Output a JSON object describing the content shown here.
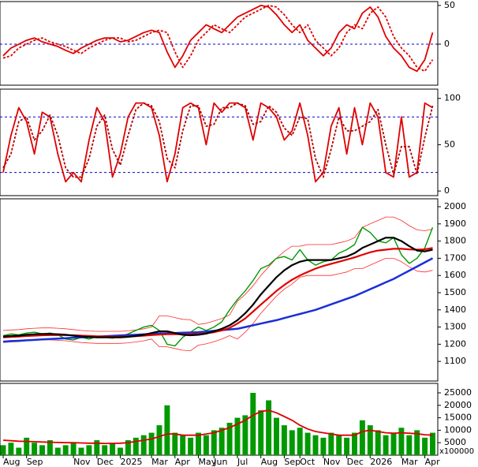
{
  "chart_data": [
    {
      "type": "line",
      "ylim": [
        -53,
        55
      ],
      "yticks": [
        0,
        50
      ],
      "ref_lines": [
        0
      ],
      "series": [
        {
          "color": "#e00000",
          "dash": false,
          "values": [
            -15,
            -5,
            0,
            5,
            8,
            3,
            0,
            -3,
            -8,
            -12,
            -5,
            0,
            5,
            8,
            8,
            3,
            5,
            10,
            15,
            18,
            15,
            -10,
            -30,
            -15,
            5,
            15,
            25,
            20,
            15,
            25,
            35,
            40,
            45,
            50,
            48,
            38,
            25,
            15,
            25,
            5,
            -5,
            -15,
            -5,
            15,
            25,
            20,
            40,
            48,
            35,
            10,
            -5,
            -15,
            -30,
            -35,
            -20,
            15
          ]
        },
        {
          "color": "#e00000",
          "dash": true,
          "values": [
            -18,
            -15,
            -5,
            0,
            5,
            8,
            3,
            0,
            -3,
            -8,
            -12,
            -5,
            0,
            5,
            8,
            8,
            3,
            5,
            10,
            15,
            18,
            15,
            -10,
            -30,
            -15,
            5,
            15,
            25,
            20,
            15,
            25,
            35,
            40,
            45,
            50,
            48,
            38,
            25,
            15,
            25,
            5,
            -5,
            -15,
            -5,
            15,
            25,
            20,
            40,
            48,
            35,
            10,
            -5,
            -15,
            -30,
            -35,
            -20
          ]
        }
      ]
    },
    {
      "type": "line",
      "ylim": [
        -5,
        110
      ],
      "yticks": [
        0,
        50,
        100
      ],
      "ref_lines": [
        20,
        80
      ],
      "series": [
        {
          "color": "#e00000",
          "dash": false,
          "values": [
            20,
            60,
            90,
            75,
            40,
            85,
            80,
            40,
            10,
            20,
            10,
            55,
            90,
            75,
            15,
            40,
            80,
            95,
            95,
            90,
            60,
            10,
            40,
            90,
            95,
            90,
            50,
            95,
            85,
            95,
            95,
            90,
            55,
            95,
            90,
            80,
            55,
            65,
            95,
            60,
            10,
            20,
            70,
            90,
            40,
            90,
            50,
            95,
            80,
            20,
            15,
            80,
            15,
            20,
            95,
            90
          ]
        },
        {
          "color": "#b00000",
          "dash": true,
          "values": [
            25,
            40,
            75,
            80,
            55,
            65,
            82,
            60,
            25,
            15,
            15,
            35,
            70,
            82,
            45,
            28,
            60,
            88,
            95,
            92,
            75,
            35,
            25,
            65,
            92,
            92,
            70,
            72,
            90,
            90,
            95,
            92,
            72,
            75,
            92,
            85,
            68,
            60,
            80,
            78,
            35,
            15,
            45,
            80,
            65,
            65,
            70,
            75,
            88,
            50,
            18,
            48,
            48,
            18,
            58,
            92
          ]
        }
      ]
    },
    {
      "type": "line",
      "ylim": [
        986,
        2046
      ],
      "yticks": [
        1100,
        1200,
        1300,
        1400,
        1500,
        1600,
        1700,
        1800,
        1900,
        2000
      ],
      "series": [
        {
          "color": "#ff2a2a",
          "width": 0.8,
          "values": [
            1280,
            1283,
            1285,
            1290,
            1293,
            1295,
            1295,
            1293,
            1290,
            1285,
            1280,
            1277,
            1275,
            1275,
            1275,
            1275,
            1278,
            1283,
            1290,
            1300,
            1365,
            1365,
            1355,
            1345,
            1342,
            1315,
            1322,
            1335,
            1350,
            1370,
            1450,
            1490,
            1540,
            1600,
            1650,
            1700,
            1740,
            1770,
            1770,
            1780,
            1780,
            1780,
            1780,
            1790,
            1800,
            1820,
            1880,
            1900,
            1920,
            1940,
            1940,
            1920,
            1890,
            1865,
            1860,
            1870
          ]
        },
        {
          "color": "#ff2a2a",
          "width": 0.8,
          "values": [
            1210,
            1213,
            1215,
            1220,
            1223,
            1225,
            1225,
            1223,
            1220,
            1215,
            1210,
            1207,
            1205,
            1205,
            1205,
            1205,
            1208,
            1213,
            1220,
            1230,
            1185,
            1185,
            1175,
            1165,
            1162,
            1195,
            1202,
            1215,
            1230,
            1250,
            1230,
            1270,
            1320,
            1380,
            1430,
            1480,
            1520,
            1550,
            1590,
            1600,
            1600,
            1600,
            1600,
            1610,
            1620,
            1640,
            1640,
            1660,
            1680,
            1700,
            1700,
            1680,
            1650,
            1625,
            1620,
            1630
          ]
        },
        {
          "color": "#009900",
          "width": 1.4,
          "values": [
            1250,
            1260,
            1255,
            1265,
            1270,
            1260,
            1265,
            1255,
            1230,
            1225,
            1240,
            1230,
            1245,
            1240,
            1235,
            1245,
            1260,
            1280,
            1300,
            1310,
            1280,
            1200,
            1190,
            1240,
            1270,
            1300,
            1280,
            1300,
            1330,
            1400,
            1460,
            1510,
            1570,
            1640,
            1660,
            1700,
            1710,
            1690,
            1750,
            1690,
            1660,
            1680,
            1690,
            1730,
            1750,
            1780,
            1880,
            1850,
            1800,
            1790,
            1820,
            1720,
            1670,
            1700,
            1760,
            1880
          ]
        },
        {
          "color": "#1a2fd8",
          "width": 2.5,
          "values": [
            1215,
            1218,
            1220,
            1223,
            1225,
            1228,
            1230,
            1233,
            1235,
            1238,
            1240,
            1242,
            1244,
            1246,
            1249,
            1251,
            1253,
            1255,
            1257,
            1260,
            1262,
            1264,
            1265,
            1267,
            1268,
            1270,
            1274,
            1278,
            1282,
            1286,
            1290,
            1300,
            1310,
            1320,
            1330,
            1340,
            1352,
            1364,
            1376,
            1388,
            1400,
            1416,
            1432,
            1448,
            1464,
            1480,
            1500,
            1520,
            1540,
            1560,
            1580,
            1604,
            1628,
            1652,
            1676,
            1700
          ]
        },
        {
          "color": "#e00000",
          "width": 2.2,
          "values": [
            1240,
            1242,
            1245,
            1248,
            1250,
            1252,
            1253,
            1253,
            1253,
            1252,
            1250,
            1248,
            1246,
            1245,
            1244,
            1244,
            1245,
            1247,
            1250,
            1253,
            1256,
            1258,
            1258,
            1258,
            1258,
            1260,
            1264,
            1270,
            1280,
            1295,
            1320,
            1350,
            1390,
            1430,
            1470,
            1510,
            1545,
            1575,
            1600,
            1620,
            1640,
            1655,
            1668,
            1680,
            1692,
            1705,
            1720,
            1735,
            1745,
            1750,
            1755,
            1755,
            1752,
            1750,
            1752,
            1760
          ]
        },
        {
          "color": "#000000",
          "width": 2.2,
          "values": [
            1245,
            1248,
            1250,
            1255,
            1258,
            1260,
            1260,
            1258,
            1255,
            1250,
            1245,
            1242,
            1240,
            1240,
            1240,
            1240,
            1243,
            1248,
            1255,
            1265,
            1275,
            1275,
            1265,
            1255,
            1252,
            1255,
            1262,
            1275,
            1290,
            1310,
            1340,
            1380,
            1430,
            1490,
            1540,
            1590,
            1630,
            1660,
            1680,
            1690,
            1690,
            1690,
            1690,
            1700,
            1710,
            1730,
            1760,
            1780,
            1800,
            1820,
            1820,
            1800,
            1770,
            1745,
            1740,
            1750
          ]
        }
      ]
    },
    {
      "type": "bar",
      "ylim": [
        0,
        28800
      ],
      "yticks": [
        5000,
        10000,
        15000,
        20000,
        25000
      ],
      "y_label": "x100000",
      "categories": [
        "Aug",
        null,
        null,
        "Sep",
        null,
        null,
        null,
        null,
        null,
        "Nov",
        null,
        null,
        "Dec",
        null,
        null,
        "2025",
        null,
        null,
        null,
        "Mar",
        null,
        null,
        "Apr",
        null,
        null,
        "May",
        null,
        "Jun",
        null,
        null,
        "Jul",
        null,
        null,
        "Aug",
        null,
        null,
        "Sep",
        null,
        "Oct",
        null,
        null,
        "Nov",
        null,
        null,
        "Dec",
        null,
        null,
        "2026",
        null,
        null,
        null,
        "Mar",
        null,
        null,
        "Apr",
        null
      ],
      "series": [
        {
          "type": "bar",
          "color": "#009900",
          "values": [
            4000,
            5000,
            3000,
            7000,
            5000,
            4000,
            6000,
            3000,
            4000,
            5000,
            3000,
            4000,
            6000,
            4000,
            5000,
            3000,
            6000,
            7000,
            8000,
            9000,
            12000,
            20000,
            9000,
            8000,
            7000,
            9000,
            8000,
            10000,
            11000,
            13000,
            15000,
            16000,
            25000,
            18000,
            22000,
            15000,
            12000,
            10000,
            11000,
            9000,
            8000,
            7000,
            9000,
            8000,
            7000,
            9000,
            14000,
            12000,
            10000,
            8000,
            9000,
            11000,
            8000,
            10000,
            7000,
            9000
          ]
        },
        {
          "type": "line",
          "color": "#e00000",
          "values": [
            6000,
            5800,
            5600,
            5500,
            5400,
            5300,
            5200,
            5100,
            5000,
            5000,
            4900,
            4800,
            4800,
            4700,
            4700,
            4800,
            5000,
            5500,
            6000,
            6500,
            7500,
            8500,
            8500,
            8000,
            8000,
            8000,
            8500,
            9000,
            10000,
            11000,
            12500,
            14000,
            16000,
            17500,
            18000,
            17000,
            15500,
            14000,
            12000,
            10500,
            9500,
            9000,
            8500,
            8000,
            8000,
            8000,
            9500,
            10000,
            9500,
            9000,
            8800,
            9000,
            8800,
            8600,
            8200,
            8000
          ]
        }
      ]
    }
  ]
}
